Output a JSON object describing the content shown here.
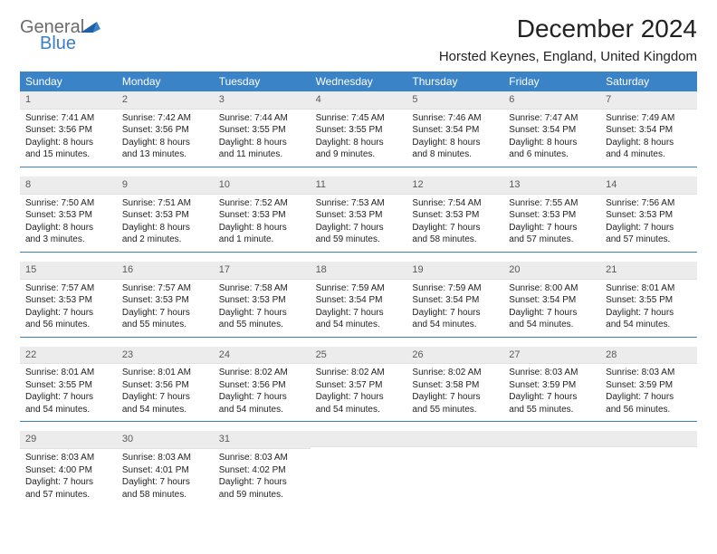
{
  "logo": {
    "line1": "General",
    "line2": "Blue"
  },
  "title": "December 2024",
  "location": "Horsted Keynes, England, United Kingdom",
  "colors": {
    "headerBg": "#3a83c6",
    "headerText": "#ffffff",
    "dayNumBg": "#ececec",
    "dayNumText": "#5a5a5a",
    "bodyText": "#222222",
    "weekBorder": "#3a83c6",
    "logoGray": "#6b6b6b",
    "logoBlue": "#3a7fc4"
  },
  "dayNames": [
    "Sunday",
    "Monday",
    "Tuesday",
    "Wednesday",
    "Thursday",
    "Friday",
    "Saturday"
  ],
  "weeks": [
    [
      {
        "num": "1",
        "sunrise": "Sunrise: 7:41 AM",
        "sunset": "Sunset: 3:56 PM",
        "day1": "Daylight: 8 hours",
        "day2": "and 15 minutes."
      },
      {
        "num": "2",
        "sunrise": "Sunrise: 7:42 AM",
        "sunset": "Sunset: 3:56 PM",
        "day1": "Daylight: 8 hours",
        "day2": "and 13 minutes."
      },
      {
        "num": "3",
        "sunrise": "Sunrise: 7:44 AM",
        "sunset": "Sunset: 3:55 PM",
        "day1": "Daylight: 8 hours",
        "day2": "and 11 minutes."
      },
      {
        "num": "4",
        "sunrise": "Sunrise: 7:45 AM",
        "sunset": "Sunset: 3:55 PM",
        "day1": "Daylight: 8 hours",
        "day2": "and 9 minutes."
      },
      {
        "num": "5",
        "sunrise": "Sunrise: 7:46 AM",
        "sunset": "Sunset: 3:54 PM",
        "day1": "Daylight: 8 hours",
        "day2": "and 8 minutes."
      },
      {
        "num": "6",
        "sunrise": "Sunrise: 7:47 AM",
        "sunset": "Sunset: 3:54 PM",
        "day1": "Daylight: 8 hours",
        "day2": "and 6 minutes."
      },
      {
        "num": "7",
        "sunrise": "Sunrise: 7:49 AM",
        "sunset": "Sunset: 3:54 PM",
        "day1": "Daylight: 8 hours",
        "day2": "and 4 minutes."
      }
    ],
    [
      {
        "num": "8",
        "sunrise": "Sunrise: 7:50 AM",
        "sunset": "Sunset: 3:53 PM",
        "day1": "Daylight: 8 hours",
        "day2": "and 3 minutes."
      },
      {
        "num": "9",
        "sunrise": "Sunrise: 7:51 AM",
        "sunset": "Sunset: 3:53 PM",
        "day1": "Daylight: 8 hours",
        "day2": "and 2 minutes."
      },
      {
        "num": "10",
        "sunrise": "Sunrise: 7:52 AM",
        "sunset": "Sunset: 3:53 PM",
        "day1": "Daylight: 8 hours",
        "day2": "and 1 minute."
      },
      {
        "num": "11",
        "sunrise": "Sunrise: 7:53 AM",
        "sunset": "Sunset: 3:53 PM",
        "day1": "Daylight: 7 hours",
        "day2": "and 59 minutes."
      },
      {
        "num": "12",
        "sunrise": "Sunrise: 7:54 AM",
        "sunset": "Sunset: 3:53 PM",
        "day1": "Daylight: 7 hours",
        "day2": "and 58 minutes."
      },
      {
        "num": "13",
        "sunrise": "Sunrise: 7:55 AM",
        "sunset": "Sunset: 3:53 PM",
        "day1": "Daylight: 7 hours",
        "day2": "and 57 minutes."
      },
      {
        "num": "14",
        "sunrise": "Sunrise: 7:56 AM",
        "sunset": "Sunset: 3:53 PM",
        "day1": "Daylight: 7 hours",
        "day2": "and 57 minutes."
      }
    ],
    [
      {
        "num": "15",
        "sunrise": "Sunrise: 7:57 AM",
        "sunset": "Sunset: 3:53 PM",
        "day1": "Daylight: 7 hours",
        "day2": "and 56 minutes."
      },
      {
        "num": "16",
        "sunrise": "Sunrise: 7:57 AM",
        "sunset": "Sunset: 3:53 PM",
        "day1": "Daylight: 7 hours",
        "day2": "and 55 minutes."
      },
      {
        "num": "17",
        "sunrise": "Sunrise: 7:58 AM",
        "sunset": "Sunset: 3:53 PM",
        "day1": "Daylight: 7 hours",
        "day2": "and 55 minutes."
      },
      {
        "num": "18",
        "sunrise": "Sunrise: 7:59 AM",
        "sunset": "Sunset: 3:54 PM",
        "day1": "Daylight: 7 hours",
        "day2": "and 54 minutes."
      },
      {
        "num": "19",
        "sunrise": "Sunrise: 7:59 AM",
        "sunset": "Sunset: 3:54 PM",
        "day1": "Daylight: 7 hours",
        "day2": "and 54 minutes."
      },
      {
        "num": "20",
        "sunrise": "Sunrise: 8:00 AM",
        "sunset": "Sunset: 3:54 PM",
        "day1": "Daylight: 7 hours",
        "day2": "and 54 minutes."
      },
      {
        "num": "21",
        "sunrise": "Sunrise: 8:01 AM",
        "sunset": "Sunset: 3:55 PM",
        "day1": "Daylight: 7 hours",
        "day2": "and 54 minutes."
      }
    ],
    [
      {
        "num": "22",
        "sunrise": "Sunrise: 8:01 AM",
        "sunset": "Sunset: 3:55 PM",
        "day1": "Daylight: 7 hours",
        "day2": "and 54 minutes."
      },
      {
        "num": "23",
        "sunrise": "Sunrise: 8:01 AM",
        "sunset": "Sunset: 3:56 PM",
        "day1": "Daylight: 7 hours",
        "day2": "and 54 minutes."
      },
      {
        "num": "24",
        "sunrise": "Sunrise: 8:02 AM",
        "sunset": "Sunset: 3:56 PM",
        "day1": "Daylight: 7 hours",
        "day2": "and 54 minutes."
      },
      {
        "num": "25",
        "sunrise": "Sunrise: 8:02 AM",
        "sunset": "Sunset: 3:57 PM",
        "day1": "Daylight: 7 hours",
        "day2": "and 54 minutes."
      },
      {
        "num": "26",
        "sunrise": "Sunrise: 8:02 AM",
        "sunset": "Sunset: 3:58 PM",
        "day1": "Daylight: 7 hours",
        "day2": "and 55 minutes."
      },
      {
        "num": "27",
        "sunrise": "Sunrise: 8:03 AM",
        "sunset": "Sunset: 3:59 PM",
        "day1": "Daylight: 7 hours",
        "day2": "and 55 minutes."
      },
      {
        "num": "28",
        "sunrise": "Sunrise: 8:03 AM",
        "sunset": "Sunset: 3:59 PM",
        "day1": "Daylight: 7 hours",
        "day2": "and 56 minutes."
      }
    ],
    [
      {
        "num": "29",
        "sunrise": "Sunrise: 8:03 AM",
        "sunset": "Sunset: 4:00 PM",
        "day1": "Daylight: 7 hours",
        "day2": "and 57 minutes."
      },
      {
        "num": "30",
        "sunrise": "Sunrise: 8:03 AM",
        "sunset": "Sunset: 4:01 PM",
        "day1": "Daylight: 7 hours",
        "day2": "and 58 minutes."
      },
      {
        "num": "31",
        "sunrise": "Sunrise: 8:03 AM",
        "sunset": "Sunset: 4:02 PM",
        "day1": "Daylight: 7 hours",
        "day2": "and 59 minutes."
      },
      {
        "empty": true
      },
      {
        "empty": true
      },
      {
        "empty": true
      },
      {
        "empty": true
      }
    ]
  ]
}
